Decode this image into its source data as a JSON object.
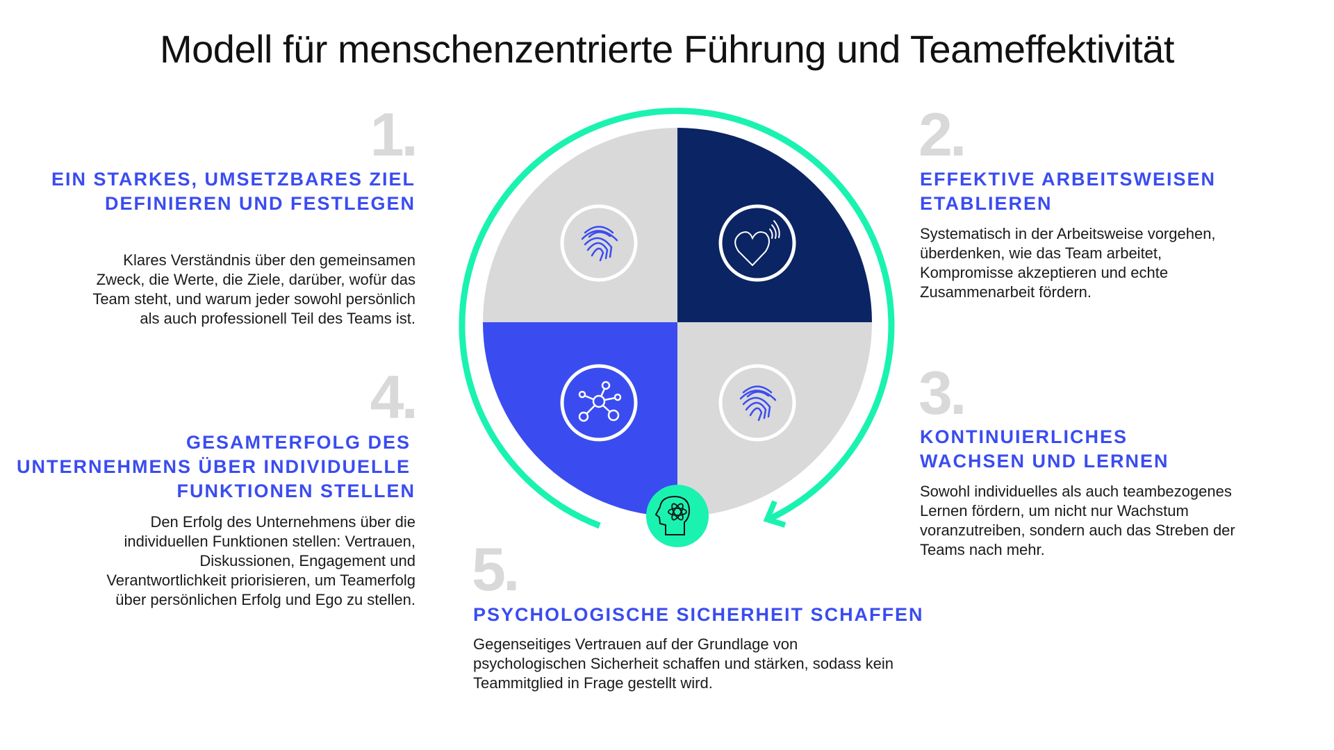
{
  "title": "Modell für menschenzentrierte Führung und Teameffektivität",
  "colors": {
    "blue": "#3a4cf0",
    "navy": "#0b2463",
    "gray": "#d9d9d9",
    "mint": "#1af2b0",
    "number_gray": "#d9d9d9"
  },
  "sections": [
    {
      "number": "1.",
      "heading": [
        "EIN STARKES, UMSETZBARES ZIEL",
        "DEFINIEREN UND FESTLEGEN"
      ],
      "body": [
        "Klares Verständnis über den gemeinsamen",
        "Zweck, die Werte, die Ziele, darüber, wofür das",
        "Team steht, und warum jeder sowohl persönlich",
        "als auch professionell Teil des Teams ist."
      ]
    },
    {
      "number": "2.",
      "heading": [
        "EFFEKTIVE ARBEITSWEISEN",
        "ETABLIEREN"
      ],
      "body": [
        "Systematisch in der Arbeitsweise vorgehen,",
        "überdenken, wie das Team arbeitet,",
        "Kompromisse akzeptieren und echte",
        "Zusammenarbeit fördern."
      ]
    },
    {
      "number": "3.",
      "heading": [
        "KONTINUIERLICHES",
        "WACHSEN UND LERNEN"
      ],
      "body": [
        "Sowohl individuelles als auch teambezogenes",
        "Lernen fördern, um nicht nur Wachstum",
        "voranzutreiben, sondern auch das Streben der",
        "Teams nach mehr."
      ]
    },
    {
      "number": "4.",
      "heading": [
        "GESAMTERFOLG DES",
        "UNTERNEHMENS ÜBER INDIVIDUELLE",
        "FUNKTIONEN STELLEN"
      ],
      "body": [
        "Den Erfolg des Unternehmens über die",
        "individuellen Funktionen stellen: Vertrauen,",
        "Diskussionen, Engagement und",
        "Verantwortlichkeit priorisieren, um Teamerfolg",
        "über persönlichen Erfolg und Ego zu stellen."
      ]
    },
    {
      "number": "5.",
      "heading": [
        "PSYCHOLOGISCHE SICHERHEIT SCHAFFEN"
      ],
      "body": [
        "Gegenseitiges Vertrauen auf der Grundlage von",
        "psychologischen Sicherheit schaffen und stärken, sodass kein",
        "Teammitglied in Frage gestellt wird."
      ]
    }
  ],
  "icons": {
    "q1": "fingerprint-icon",
    "q2": "heart-signal-icon",
    "q3": "fingerprint-icon",
    "q4": "network-icon",
    "center": "head-atom-icon"
  }
}
